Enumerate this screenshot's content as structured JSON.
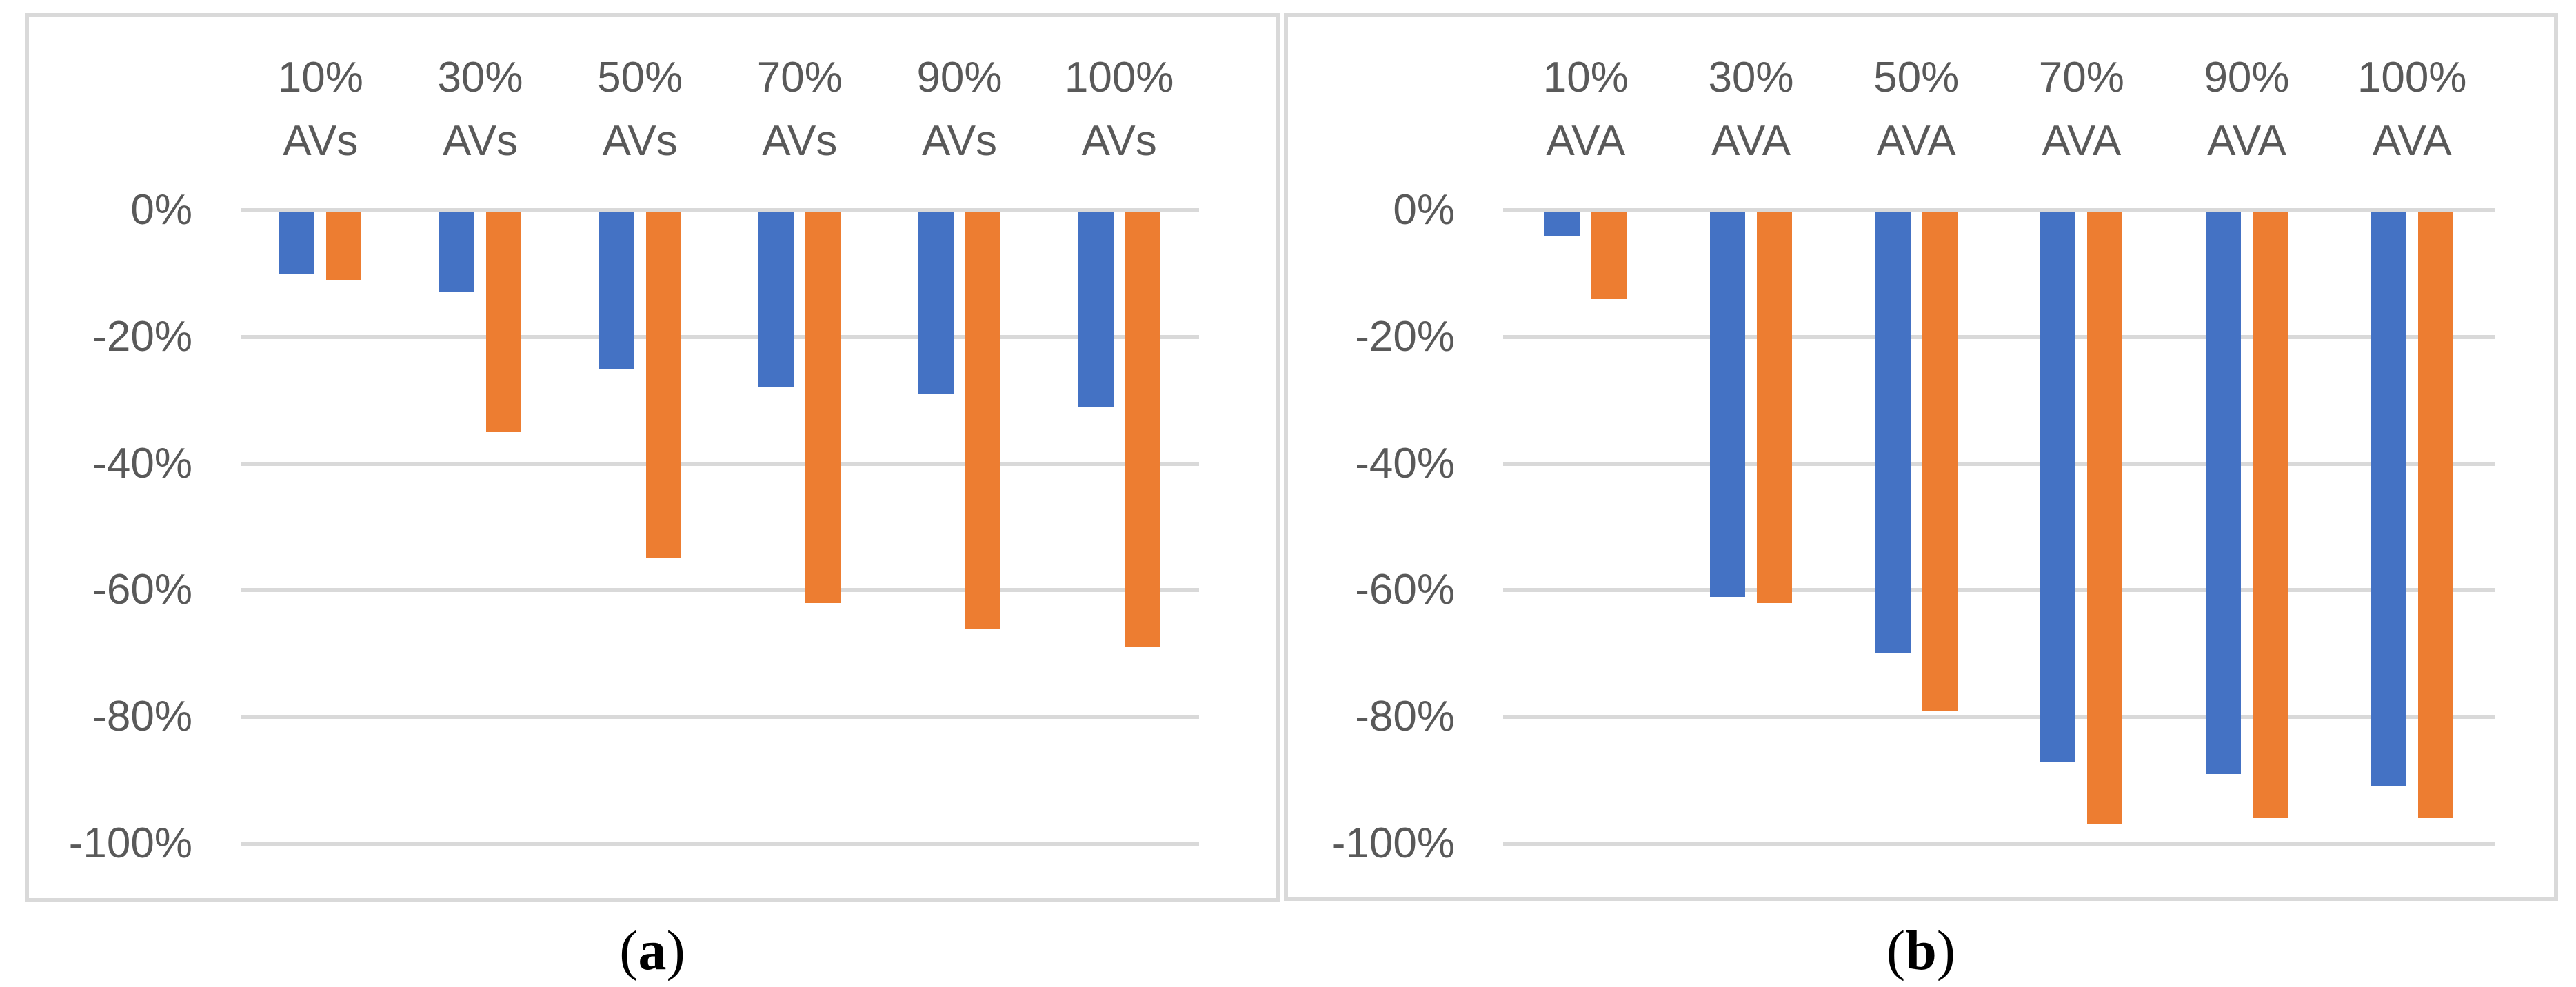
{
  "colors": {
    "series_blue": "#4472C4",
    "series_orange": "#ED7D31",
    "gridline": "#D9D9D9",
    "panel_border": "#D9D9D9",
    "tick_text": "#595959",
    "caption_text": "#000000"
  },
  "captions": {
    "a": {
      "prefix": "(",
      "letter": "a",
      "suffix": ")"
    },
    "b": {
      "prefix": "(",
      "letter": "b",
      "suffix": ")"
    }
  },
  "chart_data": [
    {
      "type": "bar",
      "title": "(a)",
      "categories": [
        "10% AVs",
        "30% AVs",
        "50% AVs",
        "70% AVs",
        "90% AVs",
        "100% AVs"
      ],
      "series": [
        {
          "name": "blue",
          "values": [
            -10,
            -13,
            -25,
            -28,
            -29,
            -31
          ]
        },
        {
          "name": "orange",
          "values": [
            -11,
            -35,
            -55,
            -62,
            -66,
            -69
          ]
        }
      ],
      "xlabel": "",
      "ylabel": "",
      "ylim": [
        -100,
        0
      ],
      "yticks": [
        "0%",
        "-20%",
        "-40%",
        "-60%",
        "-80%",
        "-100%"
      ],
      "grid": true,
      "legend_position": "none",
      "category_label_position": "top",
      "bar_direction": "down-from-zero"
    },
    {
      "type": "bar",
      "title": "(b)",
      "categories": [
        "10% AVA",
        "30% AVA",
        "50% AVA",
        "70% AVA",
        "90% AVA",
        "100% AVA"
      ],
      "series": [
        {
          "name": "blue",
          "values": [
            -4,
            -61,
            -70,
            -87,
            -89,
            -91
          ]
        },
        {
          "name": "orange",
          "values": [
            -14,
            -62,
            -79,
            -97,
            -96,
            -96
          ]
        }
      ],
      "xlabel": "",
      "ylabel": "",
      "ylim": [
        -100,
        0
      ],
      "yticks": [
        "0%",
        "-20%",
        "-40%",
        "-60%",
        "-80%",
        "-100%"
      ],
      "grid": true,
      "legend_position": "none",
      "category_label_position": "top",
      "bar_direction": "down-from-zero"
    }
  ]
}
